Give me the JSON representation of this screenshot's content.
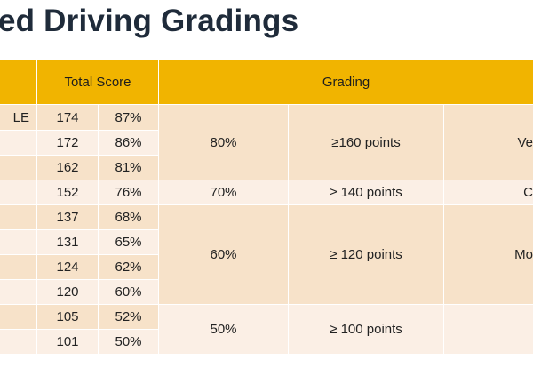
{
  "title": "ed Driving Gradings",
  "table": {
    "headers": {
      "first": "",
      "total_score": "Total Score",
      "grading": "Grading"
    },
    "rows": [
      {
        "label": "LE",
        "score": "174",
        "percent": "87%"
      },
      {
        "label": "",
        "score": "172",
        "percent": "86%"
      },
      {
        "label": "",
        "score": "162",
        "percent": "81%"
      },
      {
        "label": "",
        "score": "152",
        "percent": "76%"
      },
      {
        "label": "",
        "score": "137",
        "percent": "68%"
      },
      {
        "label": "",
        "score": "131",
        "percent": "65%"
      },
      {
        "label": "",
        "score": "124",
        "percent": "62%"
      },
      {
        "label": "",
        "score": "120",
        "percent": "60%"
      },
      {
        "label": "",
        "score": "105",
        "percent": "52%"
      },
      {
        "label": "",
        "score": "101",
        "percent": "50%"
      }
    ],
    "grades": [
      {
        "percent": "80%",
        "points": "≥160 points",
        "grade": "Ve"
      },
      {
        "percent": "70%",
        "points": "≥ 140 points",
        "grade": "C"
      },
      {
        "percent": "60%",
        "points": "≥ 120 points",
        "grade": "Mo"
      },
      {
        "percent": "50%",
        "points": "≥ 100 points",
        "grade": ""
      }
    ]
  }
}
